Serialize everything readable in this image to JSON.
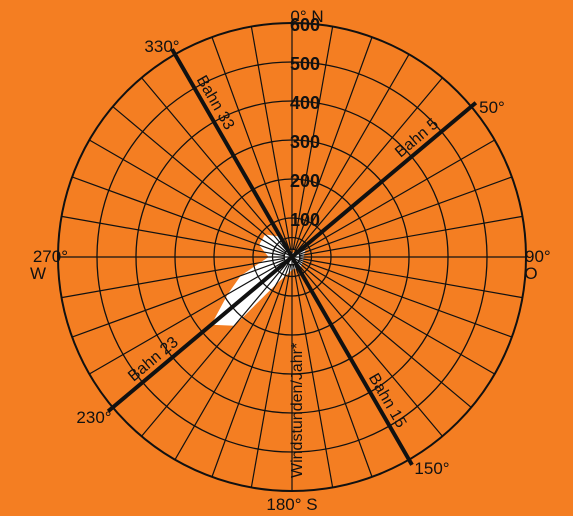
{
  "chart_data": {
    "type": "polar",
    "title": "",
    "radial_unit_label": "Windstunden/Jahr*",
    "radial_ticks": [
      "100",
      "200",
      "300",
      "400",
      "500",
      "600"
    ],
    "radial_max": 600,
    "direction_labels": [
      {
        "angle": 0,
        "text": "0° N"
      },
      {
        "angle": 50,
        "text": "50°"
      },
      {
        "angle": 90,
        "text": "90°",
        "sub": "O"
      },
      {
        "angle": 150,
        "text": "150°"
      },
      {
        "angle": 180,
        "text": "180° S"
      },
      {
        "angle": 230,
        "text": "230°"
      },
      {
        "angle": 270,
        "text": "270°",
        "sub": "W"
      },
      {
        "angle": 330,
        "text": "330°"
      }
    ],
    "sectors": 36,
    "grid": true,
    "series": [
      {
        "values": [
          {
            "angle": 0,
            "value": 10
          },
          {
            "angle": 40,
            "value": 20
          },
          {
            "angle": 60,
            "value": 40
          },
          {
            "angle": 90,
            "value": 30
          },
          {
            "angle": 110,
            "value": 30
          },
          {
            "angle": 150,
            "value": 40
          },
          {
            "angle": 170,
            "value": 30
          },
          {
            "angle": 190,
            "value": 40
          },
          {
            "angle": 210,
            "value": 80
          },
          {
            "angle": 220,
            "value": 230
          },
          {
            "angle": 230,
            "value": 270
          },
          {
            "angle": 240,
            "value": 190
          },
          {
            "angle": 250,
            "value": 140
          },
          {
            "angle": 270,
            "value": 60
          },
          {
            "angle": 290,
            "value": 90
          },
          {
            "angle": 310,
            "value": 90
          },
          {
            "angle": 330,
            "value": 60
          },
          {
            "angle": 350,
            "value": 10
          }
        ],
        "color": "#FFFFFF"
      }
    ],
    "runways": [
      {
        "label": "Bahn 5",
        "angle": 50
      },
      {
        "label": "Bahn 15",
        "angle": 150
      },
      {
        "label": "Bahn 23",
        "angle": 230
      },
      {
        "label": "Bahn 33",
        "angle": 330
      }
    ]
  },
  "colors": {
    "background": "#F47E22",
    "grid": "#111111",
    "wind_area": "#FFFFFF"
  }
}
